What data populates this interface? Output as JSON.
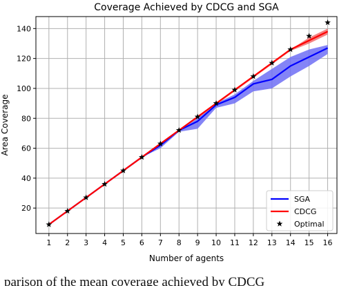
{
  "chart_data": {
    "type": "line",
    "title": "Coverage Achieved by CDCG and SGA",
    "xlabel": "Number of agents",
    "ylabel": "Area Coverage",
    "x": [
      1,
      2,
      3,
      4,
      5,
      6,
      7,
      8,
      9,
      10,
      11,
      12,
      13,
      14,
      15,
      16
    ],
    "xlim": [
      0.3,
      16.5
    ],
    "ylim": [
      3,
      148
    ],
    "x_ticks": [
      1,
      2,
      3,
      4,
      5,
      6,
      7,
      8,
      9,
      10,
      11,
      12,
      13,
      14,
      15,
      16
    ],
    "y_ticks": [
      20,
      40,
      60,
      80,
      100,
      120,
      140
    ],
    "grid": true,
    "legend_position": "bottom-right",
    "series": [
      {
        "name": "SGA",
        "color": "#0000ff",
        "band_color": "#6f6ff5",
        "values": [
          9,
          18,
          27,
          36,
          45,
          54,
          62,
          72,
          78,
          89,
          94,
          103,
          106,
          115,
          121,
          127
        ],
        "lower": [
          9,
          18,
          27,
          36,
          45,
          54,
          60,
          71,
          73,
          87,
          90,
          98,
          100,
          108,
          115,
          123
        ],
        "upper": [
          9,
          18,
          27,
          36,
          45,
          54,
          63,
          72,
          80,
          90,
          96,
          105,
          113,
          121,
          126,
          129
        ]
      },
      {
        "name": "CDCG",
        "color": "#ff0000",
        "band_color": "#f26d6d",
        "values": [
          9,
          18,
          27,
          36,
          45,
          54,
          63,
          72,
          81,
          90,
          99,
          108,
          117,
          126,
          132,
          138
        ],
        "lower": [
          9,
          18,
          27,
          36,
          45,
          54,
          63,
          72,
          80,
          89,
          98,
          107,
          116,
          125,
          130,
          136
        ],
        "upper": [
          9,
          18,
          27,
          36,
          45,
          54,
          63,
          72,
          81,
          90,
          99,
          108,
          117,
          126,
          134,
          140
        ]
      },
      {
        "name": "Optimal",
        "color": "#000000",
        "marker": "star",
        "values": [
          9,
          18,
          27,
          36,
          45,
          54,
          63,
          72,
          81,
          90,
          99,
          108,
          117,
          126,
          135,
          144
        ]
      }
    ]
  },
  "caption_fragment": "parison of the mean coverage achieved by CDCG"
}
